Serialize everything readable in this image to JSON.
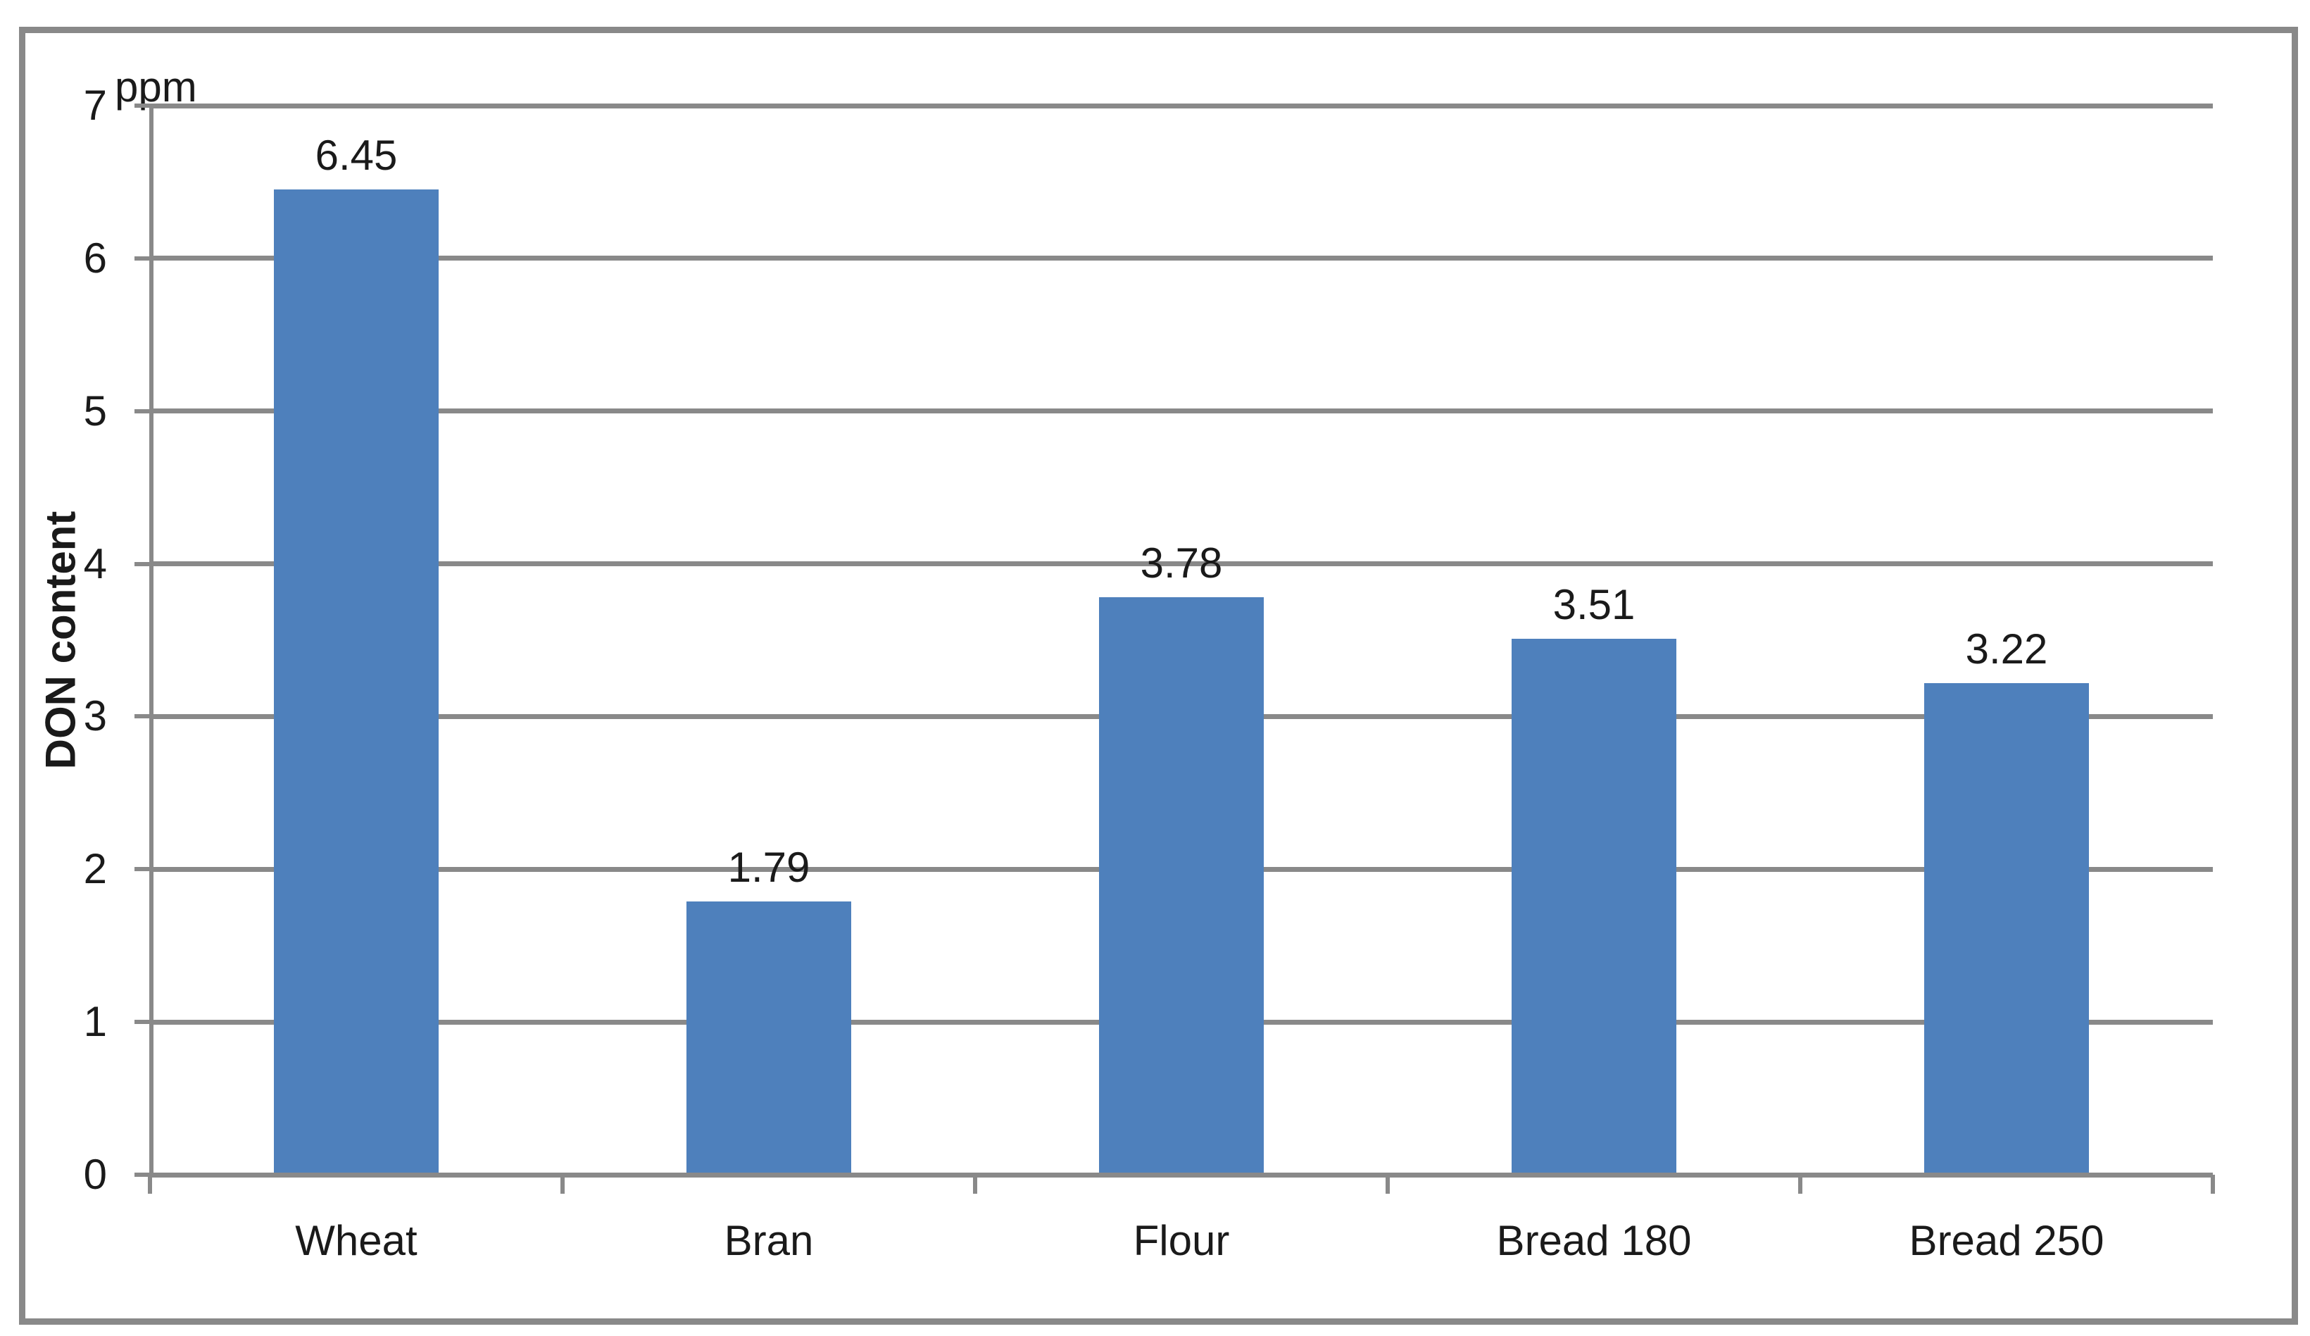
{
  "chart_data": {
    "type": "bar",
    "title": "",
    "unit_label": "ppm",
    "ylabel": "DON content",
    "xlabel": "",
    "categories": [
      "Wheat",
      "Bran",
      "Flour",
      "Bread 180",
      "Bread 250"
    ],
    "values": [
      6.45,
      1.79,
      3.78,
      3.51,
      3.22
    ],
    "data_labels": [
      "6.45",
      "1.79",
      "3.78",
      "3.51",
      "3.22"
    ],
    "ylim": [
      0,
      7
    ],
    "ytick_interval": 1,
    "ytick_labels": [
      "0",
      "1",
      "2",
      "3",
      "4",
      "5",
      "6",
      "7"
    ],
    "grid": true,
    "legend": false,
    "data_labels_shown": true,
    "colors": {
      "bar": "#4E80BC",
      "line": "#898989",
      "text": "#1a1a1a",
      "background": "#FFFFFF"
    }
  }
}
